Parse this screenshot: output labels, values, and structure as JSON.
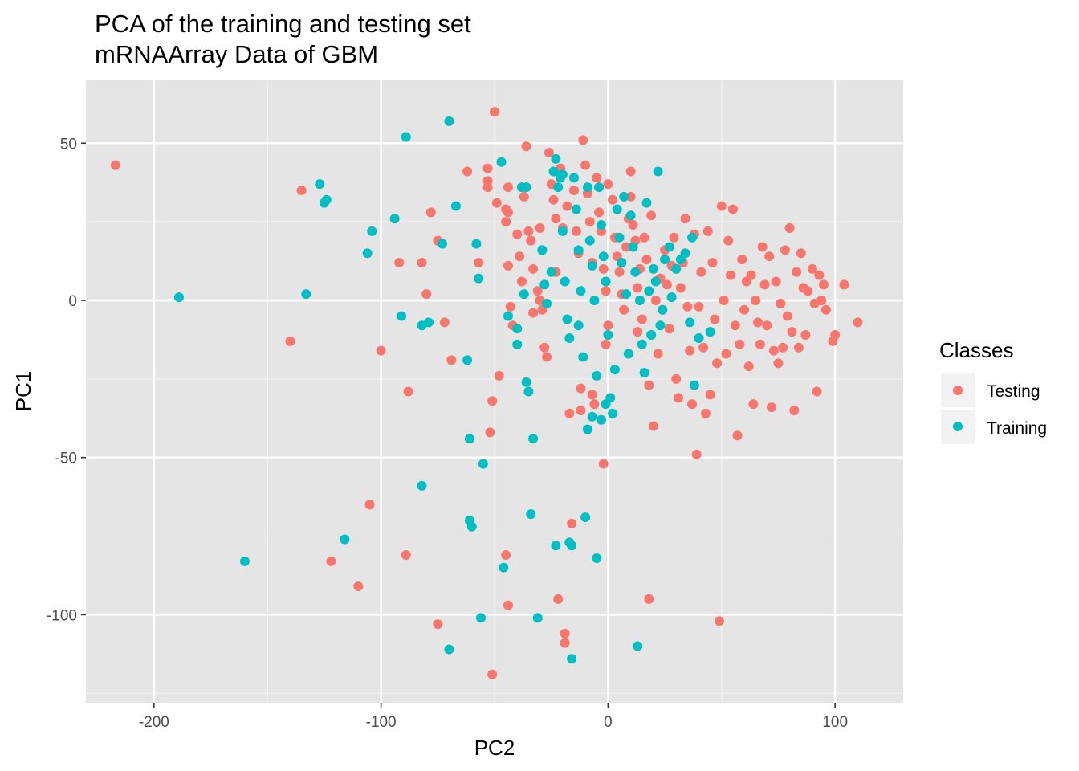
{
  "chart_data": {
    "type": "scatter",
    "title": "PCA of the training and testing set",
    "subtitle": "mRNAArray Data of GBM",
    "xlabel": "PC2",
    "ylabel": "PC1",
    "xlim": [
      -230,
      130
    ],
    "ylim": [
      -128,
      70
    ],
    "x_ticks": [
      -200,
      -100,
      0,
      100
    ],
    "y_ticks": [
      -100,
      -50,
      0,
      50
    ],
    "x_tick_labels": [
      "-200",
      "-100",
      "0",
      "100"
    ],
    "y_tick_labels": [
      "-100",
      "-50",
      "0",
      "50"
    ],
    "grid": true,
    "panel_background": "#e5e5e5",
    "legend": {
      "title": "Classes",
      "position": "right",
      "entries": [
        {
          "label": "Testing",
          "color": "#f8766d"
        },
        {
          "label": "Training",
          "color": "#00bfc4"
        }
      ]
    },
    "series": [
      {
        "name": "Testing",
        "color": "#f8766d",
        "points": [
          [
            -217,
            43
          ],
          [
            -135,
            35
          ],
          [
            -140,
            -13
          ],
          [
            -122,
            -83
          ],
          [
            -110,
            -91
          ],
          [
            -105,
            -65
          ],
          [
            -100,
            -16
          ],
          [
            -92,
            12
          ],
          [
            -88,
            -29
          ],
          [
            -89,
            -81
          ],
          [
            -82,
            12
          ],
          [
            -80,
            2
          ],
          [
            -78,
            28
          ],
          [
            -75,
            19
          ],
          [
            -75,
            -103
          ],
          [
            -72,
            -7
          ],
          [
            -69,
            -19
          ],
          [
            -62,
            41
          ],
          [
            -57,
            12
          ],
          [
            -53,
            42
          ],
          [
            -53,
            38
          ],
          [
            -53,
            36
          ],
          [
            -52,
            -42
          ],
          [
            -51,
            -32
          ],
          [
            -51,
            -119
          ],
          [
            -50,
            60
          ],
          [
            -49,
            31
          ],
          [
            -48,
            -24
          ],
          [
            -45,
            25
          ],
          [
            -45,
            29
          ],
          [
            -44,
            36
          ],
          [
            -44,
            28
          ],
          [
            -44,
            11
          ],
          [
            -45,
            -81
          ],
          [
            -44,
            -97
          ],
          [
            -43,
            -2
          ],
          [
            -42,
            -8
          ],
          [
            -40,
            21
          ],
          [
            -39,
            14
          ],
          [
            -38,
            6
          ],
          [
            -37,
            33
          ],
          [
            -36,
            49
          ],
          [
            -35,
            22
          ],
          [
            -33,
            10
          ],
          [
            -34,
            19
          ],
          [
            -33,
            -4
          ],
          [
            -31,
            3
          ],
          [
            -30,
            0
          ],
          [
            -30,
            23
          ],
          [
            -29,
            -3
          ],
          [
            -28,
            -15
          ],
          [
            -27,
            -18
          ],
          [
            -26,
            47
          ],
          [
            -25,
            37
          ],
          [
            -24,
            32
          ],
          [
            -23,
            26
          ],
          [
            -23,
            9
          ],
          [
            -22,
            -95
          ],
          [
            -21,
            42
          ],
          [
            -20,
            23
          ],
          [
            -19,
            -106
          ],
          [
            -19,
            -109
          ],
          [
            -18,
            30
          ],
          [
            -17,
            -36
          ],
          [
            -16,
            -71
          ],
          [
            -15,
            35
          ],
          [
            -14,
            22
          ],
          [
            -13,
            15
          ],
          [
            -12,
            -28
          ],
          [
            -12,
            -35
          ],
          [
            -11,
            51
          ],
          [
            -10,
            43
          ],
          [
            -9,
            34
          ],
          [
            -8,
            25
          ],
          [
            -7,
            12
          ],
          [
            -7,
            -30
          ],
          [
            -6,
            -33
          ],
          [
            -5,
            39
          ],
          [
            -4,
            28
          ],
          [
            -3,
            22
          ],
          [
            -2,
            10
          ],
          [
            -1,
            3
          ],
          [
            0,
            -8
          ],
          [
            -1,
            -14
          ],
          [
            -2,
            -52
          ],
          [
            0,
            37
          ],
          [
            2,
            32
          ],
          [
            3,
            20
          ],
          [
            4,
            14
          ],
          [
            5,
            9
          ],
          [
            6,
            2
          ],
          [
            7,
            -3
          ],
          [
            8,
            17
          ],
          [
            9,
            26
          ],
          [
            10,
            33
          ],
          [
            10,
            41
          ],
          [
            11,
            24
          ],
          [
            12,
            19
          ],
          [
            13,
            4
          ],
          [
            13,
            -10
          ],
          [
            14,
            10
          ],
          [
            15,
            -6
          ],
          [
            16,
            20
          ],
          [
            17,
            13
          ],
          [
            18,
            -27
          ],
          [
            18,
            -95
          ],
          [
            19,
            27
          ],
          [
            20,
            -40
          ],
          [
            21,
            0
          ],
          [
            22,
            -17
          ],
          [
            23,
            7
          ],
          [
            24,
            -3
          ],
          [
            25,
            16
          ],
          [
            26,
            5
          ],
          [
            27,
            -9
          ],
          [
            28,
            11
          ],
          [
            29,
            20
          ],
          [
            30,
            -25
          ],
          [
            31,
            -31
          ],
          [
            32,
            4
          ],
          [
            33,
            12
          ],
          [
            34,
            26
          ],
          [
            35,
            -2
          ],
          [
            36,
            -16
          ],
          [
            37,
            -33
          ],
          [
            38,
            21
          ],
          [
            39,
            -49
          ],
          [
            40,
            -2
          ],
          [
            41,
            9
          ],
          [
            42,
            -15
          ],
          [
            43,
            -36
          ],
          [
            44,
            22
          ],
          [
            45,
            -30
          ],
          [
            46,
            12
          ],
          [
            47,
            -6
          ],
          [
            48,
            -20
          ],
          [
            49,
            -102
          ],
          [
            50,
            30
          ],
          [
            51,
            0
          ],
          [
            52,
            -17
          ],
          [
            53,
            19
          ],
          [
            54,
            8
          ],
          [
            55,
            29
          ],
          [
            56,
            -8
          ],
          [
            57,
            -43
          ],
          [
            58,
            -14
          ],
          [
            59,
            13
          ],
          [
            60,
            -3
          ],
          [
            61,
            6
          ],
          [
            62,
            -21
          ],
          [
            63,
            8
          ],
          [
            64,
            -33
          ],
          [
            65,
            0
          ],
          [
            66,
            -7
          ],
          [
            67,
            -14
          ],
          [
            68,
            17
          ],
          [
            69,
            5
          ],
          [
            70,
            -8
          ],
          [
            71,
            14
          ],
          [
            72,
            -34
          ],
          [
            73,
            -16
          ],
          [
            74,
            6
          ],
          [
            75,
            -20
          ],
          [
            76,
            -1
          ],
          [
            77,
            -15
          ],
          [
            78,
            16
          ],
          [
            79,
            -5
          ],
          [
            80,
            23
          ],
          [
            81,
            -10
          ],
          [
            82,
            -35
          ],
          [
            83,
            9
          ],
          [
            84,
            -15
          ],
          [
            85,
            15
          ],
          [
            86,
            4
          ],
          [
            87,
            -11
          ],
          [
            88,
            3
          ],
          [
            90,
            10
          ],
          [
            91,
            -1
          ],
          [
            92,
            -29
          ],
          [
            93,
            8
          ],
          [
            94,
            0
          ],
          [
            95,
            5
          ],
          [
            96,
            -3
          ],
          [
            99,
            -13
          ],
          [
            100,
            -11
          ],
          [
            104,
            5
          ],
          [
            110,
            -7
          ]
        ]
      },
      {
        "name": "Training",
        "color": "#00bfc4",
        "points": [
          [
            -189,
            1
          ],
          [
            -160,
            -83
          ],
          [
            -133,
            2
          ],
          [
            -127,
            37
          ],
          [
            -125,
            31
          ],
          [
            -124,
            32
          ],
          [
            -116,
            -76
          ],
          [
            -106,
            15
          ],
          [
            -104,
            22
          ],
          [
            -94,
            26
          ],
          [
            -91,
            -5
          ],
          [
            -89,
            52
          ],
          [
            -82,
            -8
          ],
          [
            -82,
            -59
          ],
          [
            -79,
            -7
          ],
          [
            -73,
            18
          ],
          [
            -70,
            57
          ],
          [
            -70,
            -111
          ],
          [
            -67,
            30
          ],
          [
            -62,
            -19
          ],
          [
            -61,
            -44
          ],
          [
            -61,
            -70
          ],
          [
            -60,
            -72
          ],
          [
            -58,
            18
          ],
          [
            -57,
            7
          ],
          [
            -56,
            -101
          ],
          [
            -55,
            -52
          ],
          [
            -47,
            44
          ],
          [
            -46,
            -85
          ],
          [
            -44,
            -5
          ],
          [
            -40,
            -14
          ],
          [
            -38,
            36
          ],
          [
            -37,
            2
          ],
          [
            -36,
            -26
          ],
          [
            -34,
            -68
          ],
          [
            -33,
            -44
          ],
          [
            -31,
            -101
          ],
          [
            -29,
            16
          ],
          [
            -28,
            5
          ],
          [
            -27,
            -1
          ],
          [
            -25,
            9
          ],
          [
            -24,
            41
          ],
          [
            -23,
            45
          ],
          [
            -22,
            36
          ],
          [
            -21,
            39
          ],
          [
            -20,
            22
          ],
          [
            -19,
            6
          ],
          [
            -18,
            -6
          ],
          [
            -17,
            -12
          ],
          [
            -16,
            -78
          ],
          [
            -15,
            39
          ],
          [
            -14,
            29
          ],
          [
            -13,
            16
          ],
          [
            -12,
            3
          ],
          [
            -11,
            -18
          ],
          [
            -10,
            -69
          ],
          [
            -9,
            36
          ],
          [
            -8,
            19
          ],
          [
            -7,
            11
          ],
          [
            -6,
            0
          ],
          [
            -5,
            -24
          ],
          [
            -5,
            -82
          ],
          [
            -4,
            36
          ],
          [
            -3,
            24
          ],
          [
            -2,
            14
          ],
          [
            -1,
            6
          ],
          [
            0,
            -11
          ],
          [
            1,
            -31
          ],
          [
            2,
            -36
          ],
          [
            3,
            -22
          ],
          [
            4,
            29
          ],
          [
            5,
            20
          ],
          [
            6,
            12
          ],
          [
            7,
            33
          ],
          [
            8,
            2
          ],
          [
            9,
            -17
          ],
          [
            10,
            27
          ],
          [
            11,
            17
          ],
          [
            12,
            9
          ],
          [
            13,
            -110
          ],
          [
            14,
            0
          ],
          [
            15,
            -14
          ],
          [
            16,
            -23
          ],
          [
            17,
            31
          ],
          [
            18,
            3
          ],
          [
            19,
            -11
          ],
          [
            20,
            10
          ],
          [
            21,
            6
          ],
          [
            22,
            41
          ],
          [
            23,
            -8
          ],
          [
            24,
            -3
          ],
          [
            25,
            13
          ],
          [
            27,
            17
          ],
          [
            28,
            1
          ],
          [
            30,
            10
          ],
          [
            32,
            13
          ],
          [
            34,
            15
          ],
          [
            36,
            -7
          ],
          [
            37,
            20
          ],
          [
            38,
            -27
          ],
          [
            40,
            -12
          ],
          [
            45,
            -10
          ],
          [
            -36,
            36
          ],
          [
            -29,
            16
          ],
          [
            -20,
            40
          ],
          [
            -17,
            -77
          ],
          [
            -23,
            -78
          ],
          [
            -16,
            -114
          ],
          [
            -40,
            -9
          ],
          [
            -35,
            -29
          ],
          [
            -13,
            -8
          ],
          [
            -7,
            -37
          ],
          [
            -3,
            -38
          ],
          [
            -1,
            -33
          ],
          [
            -9,
            -41
          ]
        ]
      }
    ]
  }
}
